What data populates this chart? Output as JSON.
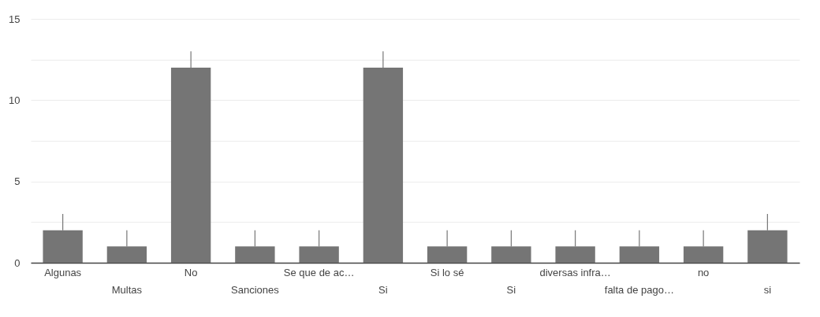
{
  "chart_data": {
    "type": "bar",
    "categories": [
      "Algunas",
      "Multas",
      "No",
      "Sanciones",
      "Se que de ac…",
      "Si",
      "Si lo sé",
      "Si",
      "diversas infra…",
      "falta de pago…",
      "no",
      "si"
    ],
    "values": [
      2,
      1,
      12,
      1,
      1,
      12,
      1,
      1,
      1,
      1,
      1,
      2
    ],
    "errors": [
      [
        2,
        3
      ],
      [
        1,
        2
      ],
      [
        12,
        13
      ],
      [
        1,
        2
      ],
      [
        1,
        2
      ],
      [
        12,
        13
      ],
      [
        1,
        2
      ],
      [
        1,
        2
      ],
      [
        1,
        2
      ],
      [
        1,
        2
      ],
      [
        1,
        2
      ],
      [
        2,
        3
      ]
    ],
    "color": "#757575",
    "ylim": [
      0,
      15
    ],
    "yticks": [
      0,
      {
        "value": 2.5,
        "label": null
      },
      5,
      {
        "value": 7.5,
        "label": null
      },
      10,
      {
        "value": 12.5,
        "label": null
      },
      15
    ],
    "grid": true
  }
}
